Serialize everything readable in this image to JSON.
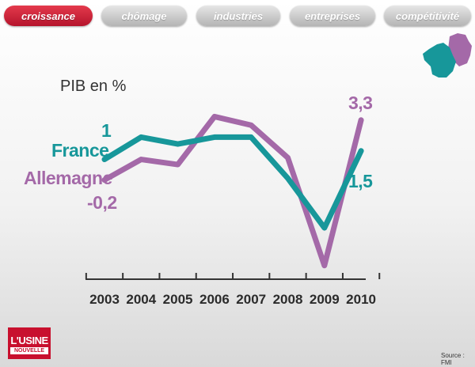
{
  "tabs": [
    {
      "label": "croissance",
      "active": true
    },
    {
      "label": "chômage",
      "active": false
    },
    {
      "label": "industries",
      "active": false
    },
    {
      "label": "entreprises",
      "active": false
    },
    {
      "label": "compétitivité",
      "active": false
    }
  ],
  "colors": {
    "france": "#17979a",
    "allemagne": "#a469a8",
    "active_tab": "#c8102e",
    "inactive_tab": "#bdbdbd"
  },
  "chart_data": {
    "type": "line",
    "title": "PIB en %",
    "categories": [
      "2003",
      "2004",
      "2005",
      "2006",
      "2007",
      "2008",
      "2009",
      "2010"
    ],
    "series": [
      {
        "name": "France",
        "values": [
          1.0,
          2.3,
          1.9,
          2.3,
          2.3,
          -0.1,
          -3.0,
          1.5
        ],
        "start_label": "1",
        "end_label": "1,5"
      },
      {
        "name": "Allemagne",
        "values": [
          -0.2,
          1.0,
          0.7,
          3.5,
          3.0,
          1.1,
          -5.2,
          3.3
        ],
        "start_label": "-0,2",
        "end_label": "3,3"
      }
    ],
    "ylim": [
      -6,
      5
    ],
    "grid": false,
    "legend": "left, labels beside series start"
  },
  "logo": {
    "top": "L'USINE",
    "bottom": "NOUVELLE"
  },
  "source": "Source : FMI"
}
